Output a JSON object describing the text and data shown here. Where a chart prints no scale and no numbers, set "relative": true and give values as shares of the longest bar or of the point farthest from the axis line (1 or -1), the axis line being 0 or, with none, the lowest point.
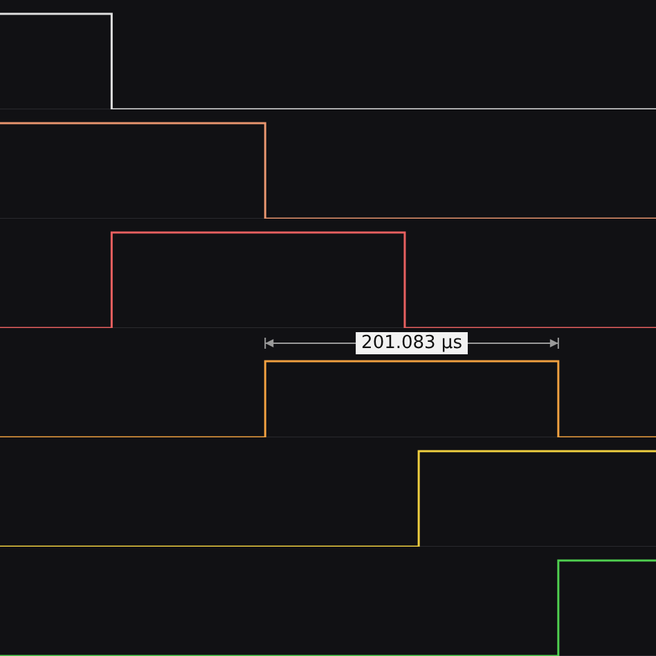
{
  "chart_data": [
    {
      "type": "step",
      "relative": true,
      "categories": [
        null,
        null,
        null,
        null,
        null,
        null,
        null,
        null,
        null,
        null,
        null,
        null,
        null,
        null,
        null,
        null,
        null,
        null,
        null,
        null,
        null,
        null,
        null,
        null,
        null,
        null,
        null,
        null,
        null,
        null,
        null,
        null,
        null,
        null,
        null,
        null,
        null,
        null,
        null,
        null,
        null,
        null,
        null,
        null,
        null,
        null,
        null,
        null
      ],
      "series": [
        {
          "color": "#e0e0e0",
          "values": [
            1,
            1,
            1,
            1,
            1,
            1,
            1,
            1,
            0,
            0,
            0,
            0,
            0,
            0,
            0,
            0,
            0,
            0,
            0,
            0,
            0,
            0,
            0,
            0,
            0,
            0,
            0,
            0,
            0,
            0,
            0,
            0,
            0,
            0,
            0,
            0,
            0,
            0,
            0,
            0,
            0,
            0,
            0,
            0,
            0,
            0,
            0,
            0
          ]
        }
      ]
    },
    {
      "type": "step",
      "relative": true,
      "categories": [
        null,
        null,
        null,
        null,
        null,
        null,
        null,
        null,
        null,
        null,
        null,
        null,
        null,
        null,
        null,
        null,
        null,
        null,
        null,
        null,
        null,
        null,
        null,
        null,
        null,
        null,
        null,
        null,
        null,
        null,
        null,
        null,
        null,
        null,
        null,
        null,
        null,
        null,
        null,
        null,
        null,
        null,
        null,
        null,
        null,
        null,
        null,
        null
      ],
      "series": [
        {
          "color": "#e8956f",
          "values": [
            1,
            1,
            1,
            1,
            1,
            1,
            1,
            1,
            1,
            1,
            1,
            1,
            1,
            1,
            1,
            1,
            1,
            1,
            1,
            0,
            0,
            0,
            0,
            0,
            0,
            0,
            0,
            0,
            0,
            0,
            0,
            0,
            0,
            0,
            0,
            0,
            0,
            0,
            0,
            0,
            0,
            0,
            0,
            0,
            0,
            0,
            0,
            0
          ]
        }
      ]
    },
    {
      "type": "step",
      "relative": true,
      "categories": [
        null,
        null,
        null,
        null,
        null,
        null,
        null,
        null,
        null,
        null,
        null,
        null,
        null,
        null,
        null,
        null,
        null,
        null,
        null,
        null,
        null,
        null,
        null,
        null,
        null,
        null,
        null,
        null,
        null,
        null,
        null,
        null,
        null,
        null,
        null,
        null,
        null,
        null,
        null,
        null,
        null,
        null,
        null,
        null,
        null,
        null,
        null,
        null
      ],
      "series": [
        {
          "color": "#e86060",
          "values": [
            0,
            0,
            0,
            0,
            0,
            0,
            0,
            0,
            1,
            1,
            1,
            1,
            1,
            1,
            1,
            1,
            1,
            1,
            1,
            1,
            1,
            1,
            1,
            1,
            1,
            1,
            1,
            1,
            1,
            0,
            0,
            0,
            0,
            0,
            0,
            0,
            0,
            0,
            0,
            0,
            0,
            0,
            0,
            0,
            0,
            0,
            0,
            0
          ]
        }
      ]
    },
    {
      "type": "step",
      "relative": true,
      "annotations": [
        "201.083 µs"
      ],
      "categories": [
        null,
        null,
        null,
        null,
        null,
        null,
        null,
        null,
        null,
        null,
        null,
        null,
        null,
        null,
        null,
        null,
        null,
        null,
        null,
        null,
        null,
        null,
        null,
        null,
        null,
        null,
        null,
        null,
        null,
        null,
        null,
        null,
        null,
        null,
        null,
        null,
        null,
        null,
        null,
        null,
        null,
        null,
        null,
        null,
        null,
        null,
        null,
        null
      ],
      "series": [
        {
          "color": "#f0a040",
          "values": [
            0,
            0,
            0,
            0,
            0,
            0,
            0,
            0,
            0,
            0,
            0,
            0,
            0,
            0,
            0,
            0,
            0,
            0,
            0,
            1,
            1,
            1,
            1,
            1,
            1,
            1,
            1,
            1,
            1,
            1,
            1,
            1,
            1,
            1,
            1,
            1,
            1,
            1,
            1,
            1,
            0,
            0,
            0,
            0,
            0,
            0,
            0,
            0
          ]
        }
      ]
    },
    {
      "type": "step",
      "relative": true,
      "categories": [
        null,
        null,
        null,
        null,
        null,
        null,
        null,
        null,
        null,
        null,
        null,
        null,
        null,
        null,
        null,
        null,
        null,
        null,
        null,
        null,
        null,
        null,
        null,
        null,
        null,
        null,
        null,
        null,
        null,
        null,
        null,
        null,
        null,
        null,
        null,
        null,
        null,
        null,
        null,
        null,
        null,
        null,
        null,
        null,
        null,
        null,
        null,
        null
      ],
      "series": [
        {
          "color": "#f0d040",
          "values": [
            0,
            0,
            0,
            0,
            0,
            0,
            0,
            0,
            0,
            0,
            0,
            0,
            0,
            0,
            0,
            0,
            0,
            0,
            0,
            0,
            0,
            0,
            0,
            0,
            0,
            0,
            0,
            0,
            0,
            0,
            1,
            1,
            1,
            1,
            1,
            1,
            1,
            1,
            1,
            1,
            1,
            1,
            1,
            1,
            1,
            1,
            1,
            1
          ]
        }
      ]
    },
    {
      "type": "step",
      "relative": true,
      "categories": [
        null,
        null,
        null,
        null,
        null,
        null,
        null,
        null,
        null,
        null,
        null,
        null,
        null,
        null,
        null,
        null,
        null,
        null,
        null,
        null,
        null,
        null,
        null,
        null,
        null,
        null,
        null,
        null,
        null,
        null,
        null,
        null,
        null,
        null,
        null,
        null,
        null,
        null,
        null,
        null,
        null,
        null,
        null,
        null,
        null,
        null,
        null,
        null
      ],
      "series": [
        {
          "color": "#50d050",
          "values": [
            0,
            0,
            0,
            0,
            0,
            0,
            0,
            0,
            0,
            0,
            0,
            0,
            0,
            0,
            0,
            0,
            0,
            0,
            0,
            0,
            0,
            0,
            0,
            0,
            0,
            0,
            0,
            0,
            0,
            0,
            0,
            0,
            0,
            0,
            0,
            0,
            0,
            0,
            0,
            0,
            1,
            1,
            1,
            1,
            1,
            1,
            1,
            1
          ]
        }
      ]
    }
  ]
}
